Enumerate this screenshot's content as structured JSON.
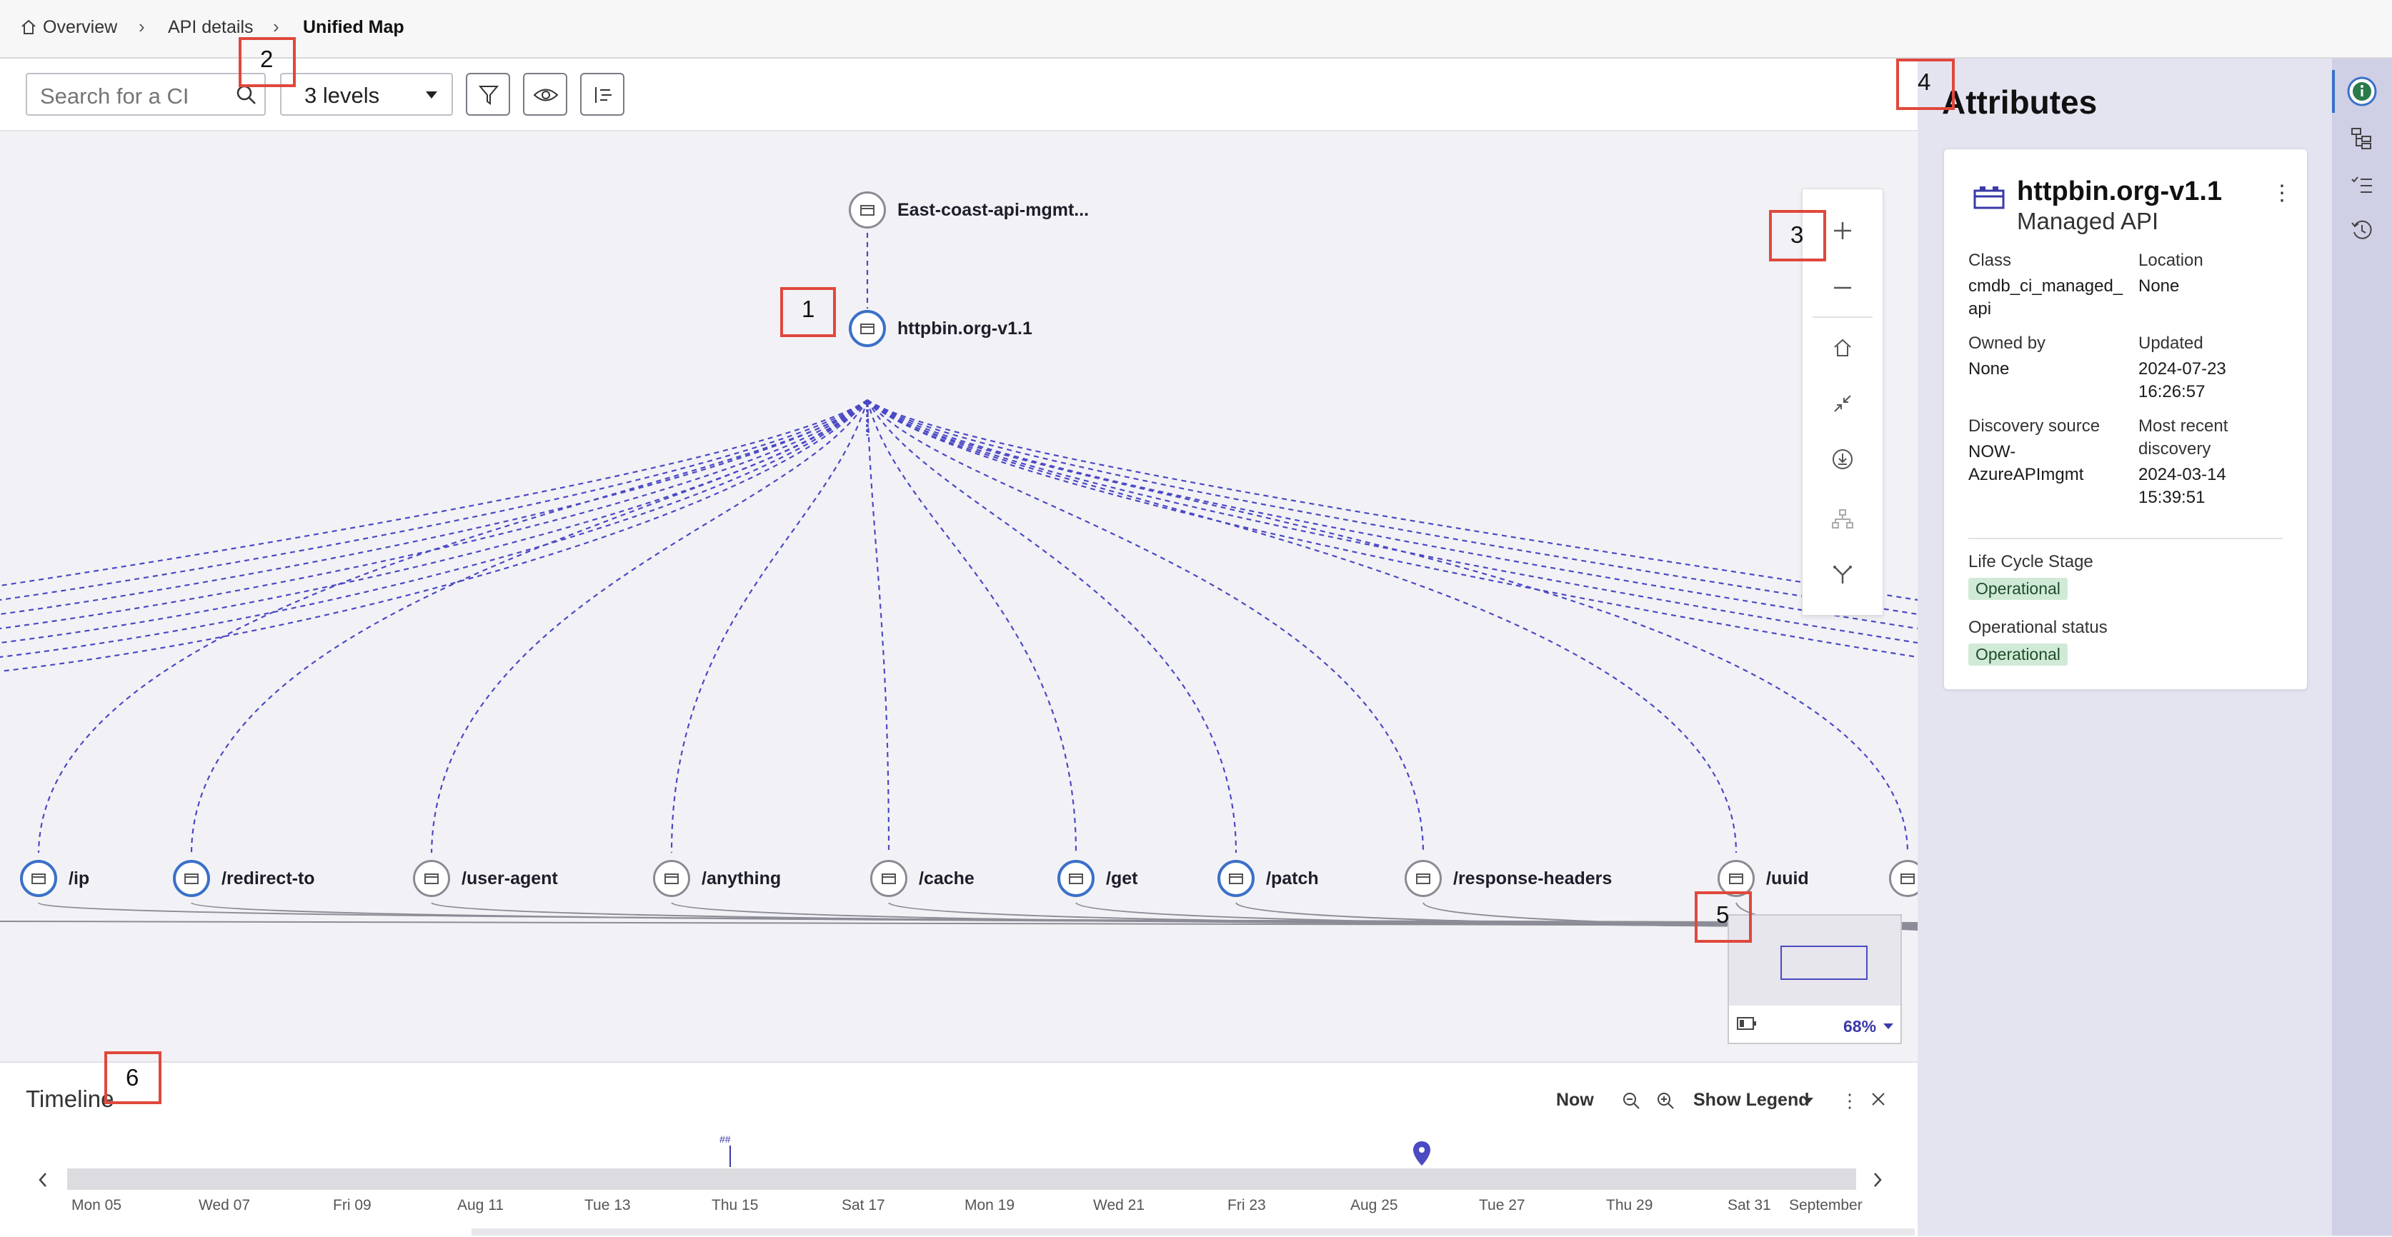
{
  "breadcrumb": {
    "overview": "Overview",
    "api_details": "API details",
    "current": "Unified Map"
  },
  "toolbar": {
    "search_placeholder": "Search for a CI",
    "levels": "3 levels"
  },
  "map": {
    "root_node": "East-coast-api-mgmt...",
    "api_node": "httpbin.org-v1.1",
    "endpoints": [
      "/ip",
      "/redirect-to",
      "/user-agent",
      "/anything",
      "/cache",
      "/get",
      "/patch",
      "/response-headers",
      "/uuid"
    ],
    "edge_color": "#4b49c4"
  },
  "minimap": {
    "zoom": "68%"
  },
  "timeline": {
    "title": "Timeline",
    "now": "Now",
    "show_legend": "Show Legend",
    "dates": [
      "Mon 05",
      "Wed 07",
      "Fri 09",
      "Aug 11",
      "Tue 13",
      "Thu 15",
      "Sat 17",
      "Mon 19",
      "Wed 21",
      "Fri 23",
      "Aug 25",
      "Tue 27",
      "Thu 29",
      "Sat 31",
      "September"
    ]
  },
  "attributes": {
    "heading": "Attributes",
    "name": "httpbin.org-v1.1",
    "type": "Managed API",
    "class_label": "Class",
    "class_value_1": "cmdb_ci_managed_",
    "class_value_2": "api",
    "location_label": "Location",
    "location_value": "None",
    "owned_label": "Owned by",
    "owned_value": "None",
    "updated_label": "Updated",
    "updated_value_1": "2024-07-23",
    "updated_value_2": "16:26:57",
    "discovery_label": "Discovery source",
    "discovery_value_1": "NOW-",
    "discovery_value_2": "AzureAPImgmt",
    "recent_label_1": "Most recent",
    "recent_label_2": "discovery",
    "recent_value_1": "2024-03-14",
    "recent_value_2": "15:39:51",
    "lifecycle_label": "Life Cycle Stage",
    "lifecycle_value": "Operational",
    "opstatus_label": "Operational status",
    "opstatus_value": "Operational"
  },
  "annotations": [
    "1",
    "2",
    "3",
    "4",
    "5",
    "6"
  ],
  "colors": {
    "accent": "#3a70c8",
    "marker": "#e0483c",
    "rail": "#cfcfe6",
    "badge_bg": "#d1ead7"
  }
}
